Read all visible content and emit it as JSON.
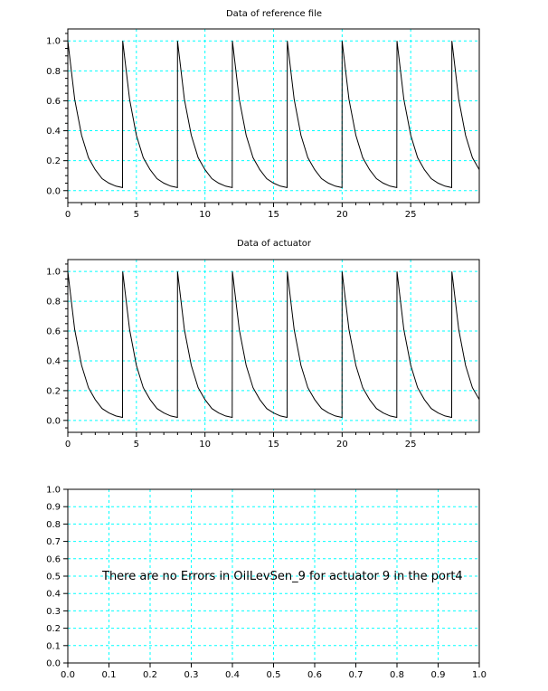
{
  "chart_data": [
    {
      "type": "line",
      "title": "Data of reference file",
      "xlabel": "",
      "ylabel": "",
      "xlim": [
        0,
        30
      ],
      "ylim": [
        -0.08,
        1.08
      ],
      "xticks": [
        0,
        5,
        10,
        15,
        20,
        25
      ],
      "yticks": [
        0.0,
        0.2,
        0.4,
        0.6,
        0.8,
        1.0
      ],
      "ytick_labels": [
        "0.0",
        "0.2",
        "0.4",
        "0.6",
        "0.8",
        "1.0"
      ],
      "grid": true,
      "grid_color": "#00ffff",
      "line_color": "#000000",
      "series": [
        {
          "x": [
            0,
            0.5,
            1,
            1.5,
            2,
            2.5,
            3,
            3.5,
            3.99,
            4,
            4.5,
            5,
            5.5,
            6,
            6.5,
            7,
            7.5,
            7.99,
            8,
            8.5,
            9,
            9.5,
            10,
            10.5,
            11,
            11.5,
            11.99,
            12,
            12.5,
            13,
            13.5,
            14,
            14.5,
            15,
            15.5,
            15.99,
            16,
            16.5,
            17,
            17.5,
            18,
            18.5,
            19,
            19.5,
            19.99,
            20,
            20.5,
            21,
            21.5,
            22,
            22.5,
            23,
            23.5,
            23.99,
            24,
            24.5,
            25,
            25.5,
            26,
            26.5,
            27,
            27.5,
            27.99,
            28,
            28.5,
            29,
            29.5,
            30
          ],
          "y": [
            1.0,
            0.61,
            0.37,
            0.22,
            0.14,
            0.08,
            0.05,
            0.03,
            0.02,
            1.0,
            0.61,
            0.37,
            0.22,
            0.14,
            0.08,
            0.05,
            0.03,
            0.02,
            1.0,
            0.61,
            0.37,
            0.22,
            0.14,
            0.08,
            0.05,
            0.03,
            0.02,
            1.0,
            0.61,
            0.37,
            0.22,
            0.14,
            0.08,
            0.05,
            0.03,
            0.02,
            1.0,
            0.61,
            0.37,
            0.22,
            0.14,
            0.08,
            0.05,
            0.03,
            0.02,
            1.0,
            0.61,
            0.37,
            0.22,
            0.14,
            0.08,
            0.05,
            0.03,
            0.02,
            1.0,
            0.61,
            0.37,
            0.22,
            0.14,
            0.08,
            0.05,
            0.03,
            0.02,
            1.0,
            0.61,
            0.37,
            0.22,
            0.14
          ]
        }
      ]
    },
    {
      "type": "line",
      "title": "Data of actuator",
      "xlabel": "",
      "ylabel": "",
      "xlim": [
        0,
        30
      ],
      "ylim": [
        -0.08,
        1.08
      ],
      "xticks": [
        0,
        5,
        10,
        15,
        20,
        25
      ],
      "yticks": [
        0.0,
        0.2,
        0.4,
        0.6,
        0.8,
        1.0
      ],
      "ytick_labels": [
        "0.0",
        "0.2",
        "0.4",
        "0.6",
        "0.8",
        "1.0"
      ],
      "grid": true,
      "grid_color": "#00ffff",
      "line_color": "#000000",
      "series": [
        {
          "x": [
            0,
            0.5,
            1,
            1.5,
            2,
            2.5,
            3,
            3.5,
            3.99,
            4,
            4.5,
            5,
            5.5,
            6,
            6.5,
            7,
            7.5,
            7.99,
            8,
            8.5,
            9,
            9.5,
            10,
            10.5,
            11,
            11.5,
            11.99,
            12,
            12.5,
            13,
            13.5,
            14,
            14.5,
            15,
            15.5,
            15.99,
            16,
            16.5,
            17,
            17.5,
            18,
            18.5,
            19,
            19.5,
            19.99,
            20,
            20.5,
            21,
            21.5,
            22,
            22.5,
            23,
            23.5,
            23.99,
            24,
            24.5,
            25,
            25.5,
            26,
            26.5,
            27,
            27.5,
            27.99,
            28,
            28.5,
            29,
            29.5,
            30
          ],
          "y": [
            1.0,
            0.61,
            0.37,
            0.22,
            0.14,
            0.08,
            0.05,
            0.03,
            0.02,
            1.0,
            0.61,
            0.37,
            0.22,
            0.14,
            0.08,
            0.05,
            0.03,
            0.02,
            1.0,
            0.61,
            0.37,
            0.22,
            0.14,
            0.08,
            0.05,
            0.03,
            0.02,
            1.0,
            0.61,
            0.37,
            0.22,
            0.14,
            0.08,
            0.05,
            0.03,
            0.02,
            1.0,
            0.61,
            0.37,
            0.22,
            0.14,
            0.08,
            0.05,
            0.03,
            0.02,
            1.0,
            0.61,
            0.37,
            0.22,
            0.14,
            0.08,
            0.05,
            0.03,
            0.02,
            1.0,
            0.61,
            0.37,
            0.22,
            0.14,
            0.08,
            0.05,
            0.03,
            0.02,
            1.0,
            0.61,
            0.37,
            0.22,
            0.14
          ]
        }
      ]
    },
    {
      "type": "line",
      "title": "",
      "xlabel": "",
      "ylabel": "",
      "xlim": [
        0,
        1
      ],
      "ylim": [
        0,
        1
      ],
      "xticks": [
        0,
        0.1,
        0.2,
        0.3,
        0.4,
        0.5,
        0.6,
        0.7,
        0.8,
        0.9,
        1.0
      ],
      "xtick_labels": [
        "0.0",
        "0.1",
        "0.2",
        "0.3",
        "0.4",
        "0.5",
        "0.6",
        "0.7",
        "0.8",
        "0.9",
        "1.0"
      ],
      "yticks": [
        0,
        0.1,
        0.2,
        0.3,
        0.4,
        0.5,
        0.6,
        0.7,
        0.8,
        0.9,
        1.0
      ],
      "ytick_labels": [
        "0.0",
        "0.1",
        "0.2",
        "0.3",
        "0.4",
        "0.5",
        "0.6",
        "0.7",
        "0.8",
        "0.9",
        "1.0"
      ],
      "grid": true,
      "grid_color": "#00ffff",
      "series": [],
      "annotation": "There are no Errors in OilLevSen_9 for actuator 9 in the port4"
    }
  ]
}
